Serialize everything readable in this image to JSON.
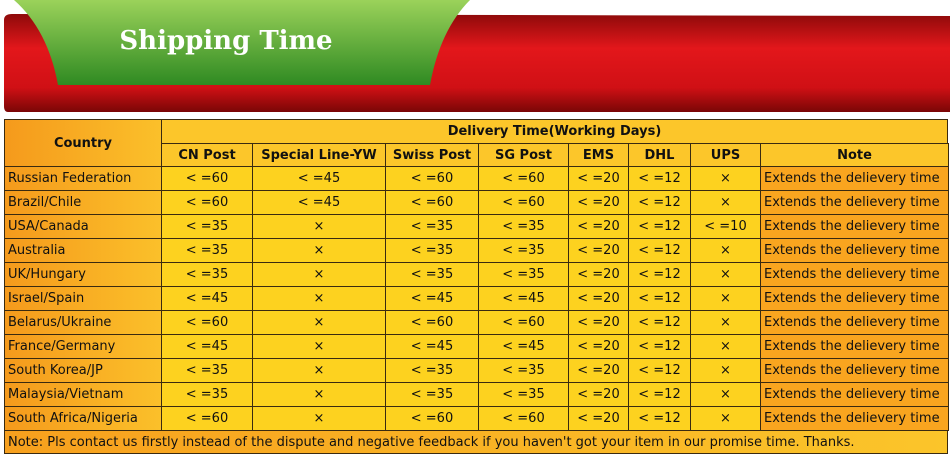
{
  "header": {
    "title": "Shipping Time"
  },
  "table": {
    "country_header": "Country",
    "group_header": "Delivery Time(Working Days)",
    "columns": [
      "CN Post",
      "Special Line-YW",
      "Swiss Post",
      "SG Post",
      "EMS",
      "DHL",
      "UPS",
      "Note"
    ],
    "rows": [
      [
        "Russian Federation",
        "< =60",
        "< =45",
        "< =60",
        "< =60",
        "< =20",
        "< =12",
        "×",
        "Extends the delievery time"
      ],
      [
        "Brazil/Chile",
        "< =60",
        "< =45",
        "< =60",
        "< =60",
        "< =20",
        "< =12",
        "×",
        "Extends the delievery time"
      ],
      [
        "USA/Canada",
        "< =35",
        "×",
        "< =35",
        "< =35",
        "< =20",
        "< =12",
        "< =10",
        "Extends the delievery time"
      ],
      [
        "Australia",
        "< =35",
        "×",
        "< =35",
        "< =35",
        "< =20",
        "< =12",
        "×",
        "Extends the delievery time"
      ],
      [
        "UK/Hungary",
        "< =35",
        "×",
        "< =35",
        "< =35",
        "< =20",
        "< =12",
        "×",
        "Extends the delievery time"
      ],
      [
        "Israel/Spain",
        "< =45",
        "×",
        "< =45",
        "< =45",
        "< =20",
        "< =12",
        "×",
        "Extends the delievery time"
      ],
      [
        "Belarus/Ukraine",
        "< =60",
        "×",
        "< =60",
        "< =60",
        "< =20",
        "< =12",
        "×",
        "Extends the delievery time"
      ],
      [
        "France/Germany",
        "< =45",
        "×",
        "< =45",
        "< =45",
        "< =20",
        "< =12",
        "×",
        "Extends the delievery time"
      ],
      [
        "South Korea/JP",
        "< =35",
        "×",
        "< =35",
        "< =35",
        "< =20",
        "< =12",
        "×",
        "Extends the delievery time"
      ],
      [
        "Malaysia/Vietnam",
        "< =35",
        "×",
        "< =35",
        "< =35",
        "< =20",
        "< =12",
        "×",
        "Extends the delievery time"
      ],
      [
        "South Africa/Nigeria",
        "< =60",
        "×",
        "< =60",
        "< =60",
        "< =20",
        "< =12",
        "×",
        "Extends the delievery time"
      ]
    ]
  },
  "footer": {
    "note": "Note: Pls contact us firstly instead of the dispute and negative feedback if you haven't got your item in our promise time. Thanks."
  }
}
